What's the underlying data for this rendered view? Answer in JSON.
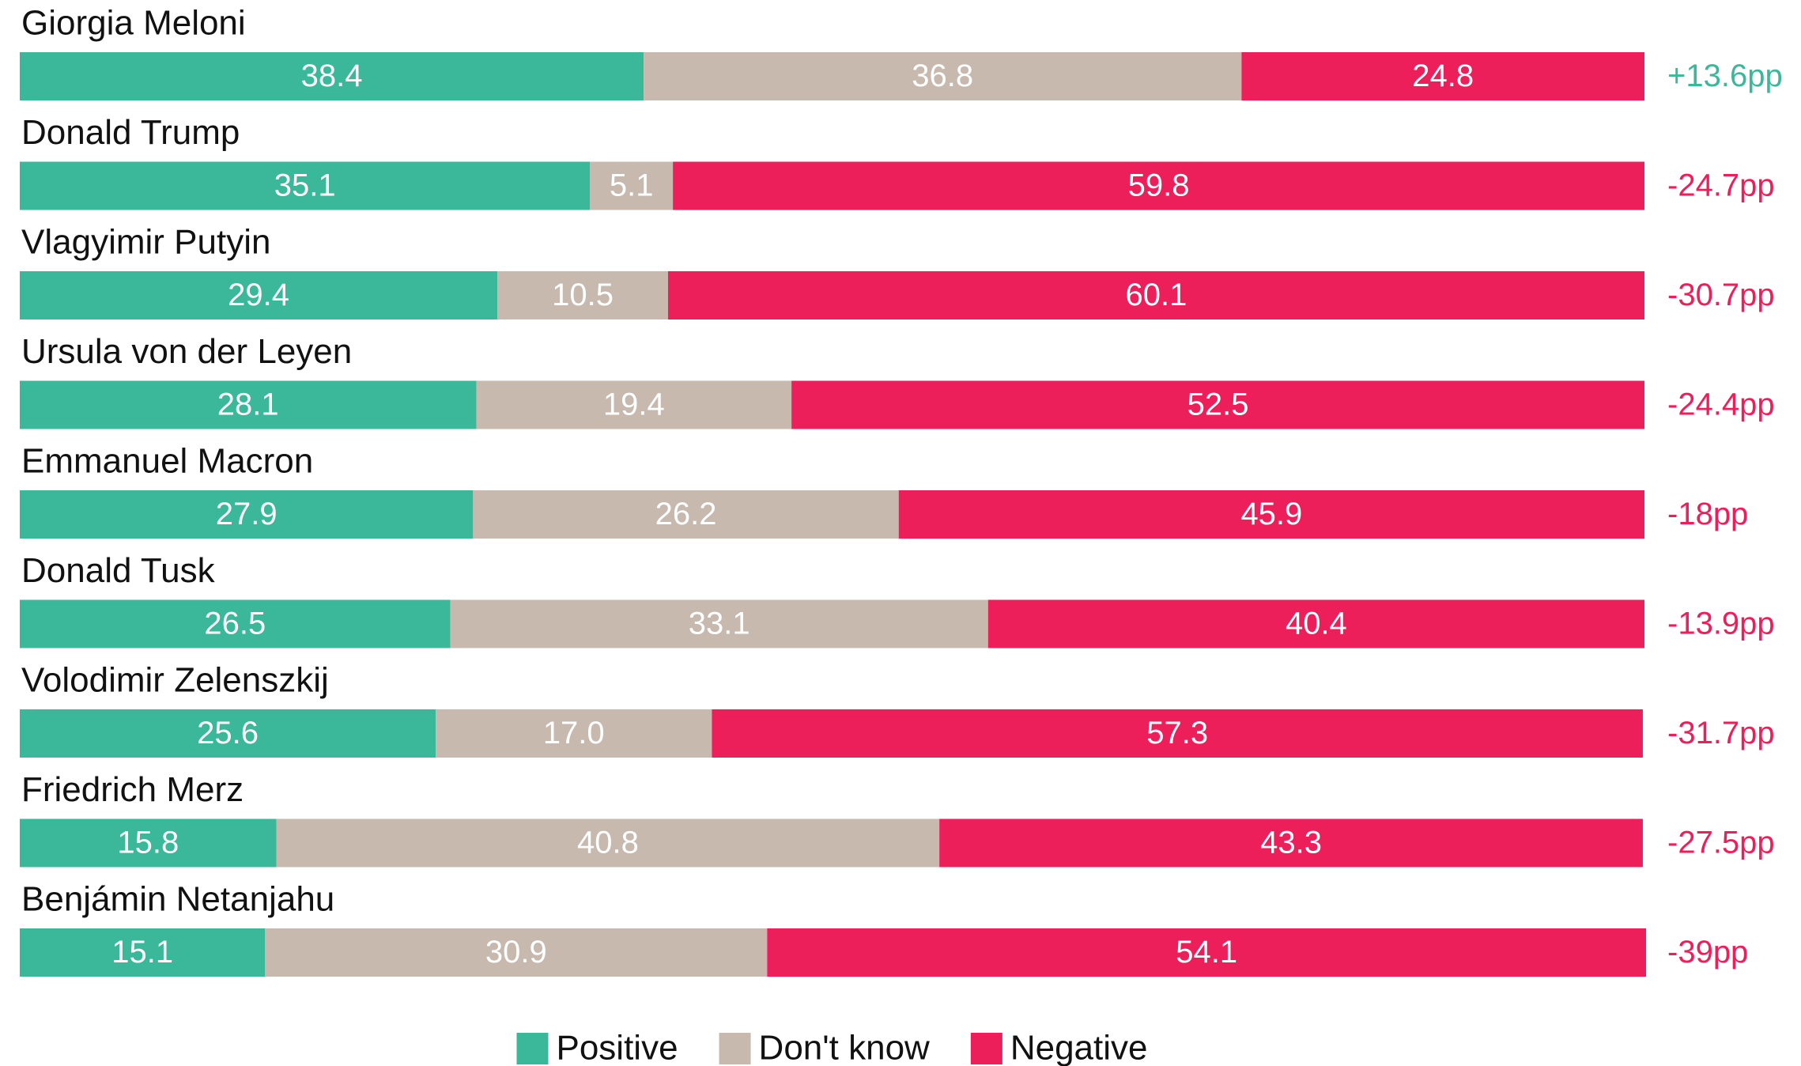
{
  "chart_data": {
    "type": "stacked-bar-horizontal",
    "categories": [
      "Giorgia Meloni",
      "Donald Trump",
      "Vlagyimir Putyin",
      "Ursula von der Leyen",
      "Emmanuel Macron",
      "Donald Tusk",
      "Volodimir Zelenszkij",
      "Friedrich Merz",
      "Benjámin Netanjahu"
    ],
    "xlim": [
      0,
      100
    ],
    "series": [
      {
        "name": "Positive",
        "color": "#3bb89a",
        "values": [
          38.4,
          35.1,
          29.4,
          28.1,
          27.9,
          26.5,
          25.6,
          15.8,
          15.1
        ]
      },
      {
        "name": "Don't know",
        "color": "#c7b9ae",
        "values": [
          36.8,
          5.1,
          10.5,
          19.4,
          26.2,
          33.1,
          17,
          40.8,
          30.9
        ],
        "value_labels": [
          "36.8",
          "5.1",
          "10.5",
          "19.4",
          "26.2",
          "33.1",
          "17.0",
          "40.8",
          "30.9"
        ]
      },
      {
        "name": "Negative",
        "color": "#ec1f5b",
        "values": [
          24.8,
          59.8,
          60.1,
          52.5,
          45.9,
          40.4,
          57.3,
          43.3,
          54.1
        ]
      }
    ],
    "net": {
      "values": [
        13.6,
        -24.7,
        -30.7,
        -24.4,
        -18,
        -13.9,
        -31.7,
        -27.5,
        -39
      ],
      "value_labels": [
        "+13.6pp",
        "-24.7pp",
        "-30.7pp",
        "-24.4pp",
        "-18pp",
        "-13.9pp",
        "-31.7pp",
        "-27.5pp",
        "-39pp"
      ]
    }
  }
}
